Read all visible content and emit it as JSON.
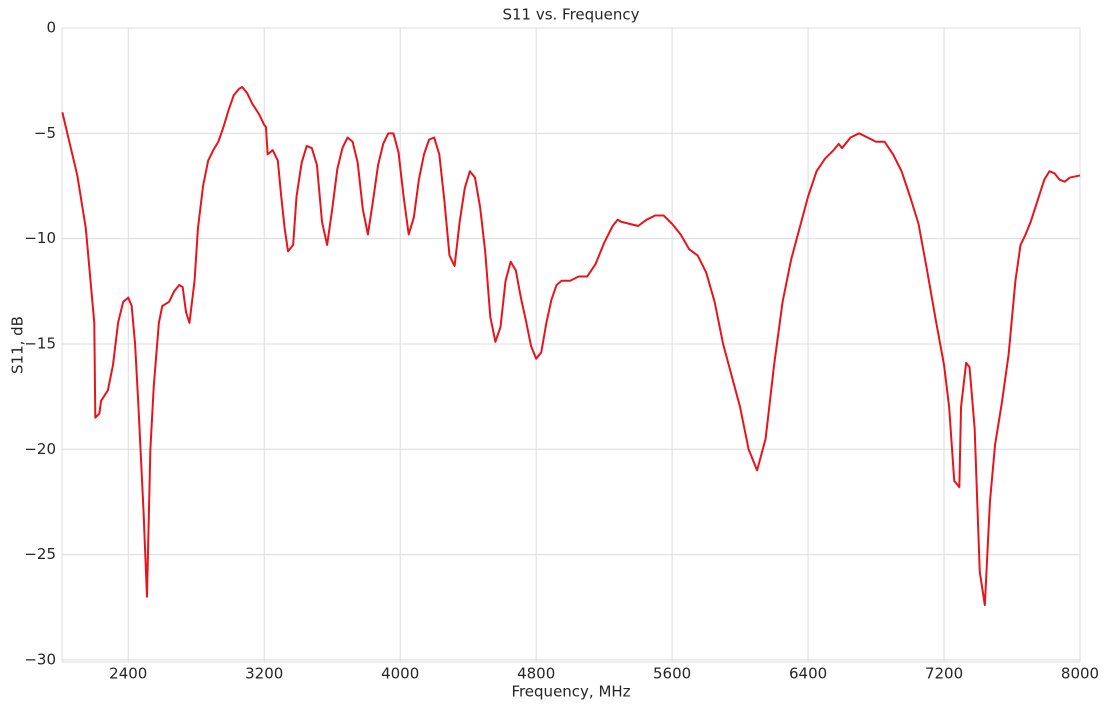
{
  "chart_data": {
    "type": "line",
    "title": "S11 vs. Frequency",
    "xlabel": "Frequency, MHz",
    "ylabel": "S11, dB",
    "x": [
      2012,
      2100,
      2150,
      2200,
      2206,
      2230,
      2240,
      2280,
      2310,
      2340,
      2370,
      2400,
      2420,
      2440,
      2460,
      2490,
      2510,
      2530,
      2550,
      2580,
      2600,
      2640,
      2670,
      2700,
      2720,
      2740,
      2760,
      2790,
      2810,
      2840,
      2870,
      2900,
      2930,
      2960,
      2990,
      3020,
      3050,
      3070,
      3100,
      3130,
      3170,
      3200,
      3210,
      3220,
      3250,
      3280,
      3300,
      3320,
      3340,
      3370,
      3390,
      3420,
      3450,
      3480,
      3510,
      3540,
      3570,
      3600,
      3630,
      3660,
      3690,
      3720,
      3750,
      3780,
      3810,
      3840,
      3870,
      3900,
      3930,
      3960,
      3990,
      4020,
      4050,
      4080,
      4110,
      4140,
      4170,
      4200,
      4230,
      4260,
      4290,
      4320,
      4350,
      4380,
      4410,
      4440,
      4470,
      4500,
      4530,
      4560,
      4590,
      4620,
      4650,
      4680,
      4710,
      4740,
      4770,
      4800,
      4830,
      4860,
      4890,
      4920,
      4950,
      5000,
      5050,
      5100,
      5150,
      5200,
      5250,
      5280,
      5300,
      5350,
      5400,
      5450,
      5500,
      5550,
      5600,
      5650,
      5700,
      5750,
      5800,
      5850,
      5900,
      5950,
      6000,
      6050,
      6100,
      6150,
      6200,
      6250,
      6300,
      6350,
      6400,
      6450,
      6500,
      6550,
      6580,
      6600,
      6650,
      6700,
      6750,
      6800,
      6850,
      6900,
      6950,
      7000,
      7050,
      7100,
      7150,
      7200,
      7230,
      7260,
      7290,
      7300,
      7330,
      7350,
      7380,
      7410,
      7440,
      7470,
      7500,
      7540,
      7580,
      7620,
      7650,
      7680,
      7710,
      7750,
      7790,
      7820,
      7850,
      7880,
      7910,
      7940,
      8000
    ],
    "series": [
      {
        "name": "S11",
        "color": "#e8141c",
        "values": [
          -4.0,
          -7,
          -9.5,
          -14,
          -18.5,
          -18.3,
          -17.7,
          -17.2,
          -16.0,
          -14.0,
          -13.0,
          -12.8,
          -13.2,
          -15,
          -18,
          -23,
          -27.0,
          -20,
          -17,
          -14,
          -13.2,
          -13.0,
          -12.5,
          -12.2,
          -12.3,
          -13.5,
          -14.0,
          -12,
          -9.5,
          -7.5,
          -6.3,
          -5.8,
          -5.4,
          -4.7,
          -3.9,
          -3.2,
          -2.9,
          -2.8,
          -3.1,
          -3.6,
          -4.1,
          -4.6,
          -4.7,
          -6.0,
          -5.8,
          -6.3,
          -8,
          -9.5,
          -10.6,
          -10.3,
          -8,
          -6.4,
          -5.6,
          -5.7,
          -6.5,
          -9.2,
          -10.3,
          -8.6,
          -6.7,
          -5.7,
          -5.2,
          -5.4,
          -6.4,
          -8.6,
          -9.8,
          -8.2,
          -6.5,
          -5.5,
          -5.0,
          -5.0,
          -5.9,
          -8.0,
          -9.8,
          -9.0,
          -7.2,
          -6.0,
          -5.3,
          -5.2,
          -6.0,
          -8.2,
          -10.8,
          -11.3,
          -9.2,
          -7.6,
          -6.8,
          -7.1,
          -8.5,
          -10.6,
          -13.7,
          -14.9,
          -14.2,
          -12.0,
          -11.1,
          -11.5,
          -12.8,
          -13.9,
          -15.1,
          -15.7,
          -15.4,
          -14,
          -12.9,
          -12.2,
          -12.0,
          -12.0,
          -11.8,
          -11.8,
          -11.2,
          -10.2,
          -9.4,
          -9.1,
          -9.2,
          -9.3,
          -9.4,
          -9.1,
          -8.9,
          -8.9,
          -9.3,
          -9.8,
          -10.5,
          -10.8,
          -11.6,
          -13,
          -15,
          -16.5,
          -18,
          -20,
          -21,
          -19.5,
          -16,
          -13,
          -11,
          -9.5,
          -8,
          -6.8,
          -6.2,
          -5.8,
          -5.5,
          -5.7,
          -5.2,
          -5.0,
          -5.2,
          -5.4,
          -5.4,
          -6,
          -6.8,
          -8,
          -9.3,
          -11.5,
          -13.8,
          -16,
          -18,
          -21.5,
          -21.8,
          -18,
          -15.9,
          -16.1,
          -19,
          -25.8,
          -27.4,
          -22.5,
          -19.8,
          -17.8,
          -15.5,
          -12,
          -10.3,
          -9.8,
          -9.2,
          -8.2,
          -7.2,
          -6.8,
          -6.9,
          -7.2,
          -7.3,
          -7.1,
          -7.0
        ]
      }
    ],
    "xlim": [
      2010,
      8000
    ],
    "ylim": [
      -30.1,
      0
    ],
    "xticks": [
      2400,
      3200,
      4000,
      4800,
      5600,
      6400,
      7200,
      8000
    ],
    "yticks": [
      0,
      {
        "value": -5,
        "label": "−5"
      },
      {
        "value": -10,
        "label": "−10"
      },
      {
        "value": -15,
        "label": "−15"
      },
      {
        "value": -20,
        "label": "−20"
      },
      {
        "value": -25,
        "label": "−25"
      },
      {
        "value": -30,
        "label": "−30"
      }
    ],
    "grid": true
  }
}
